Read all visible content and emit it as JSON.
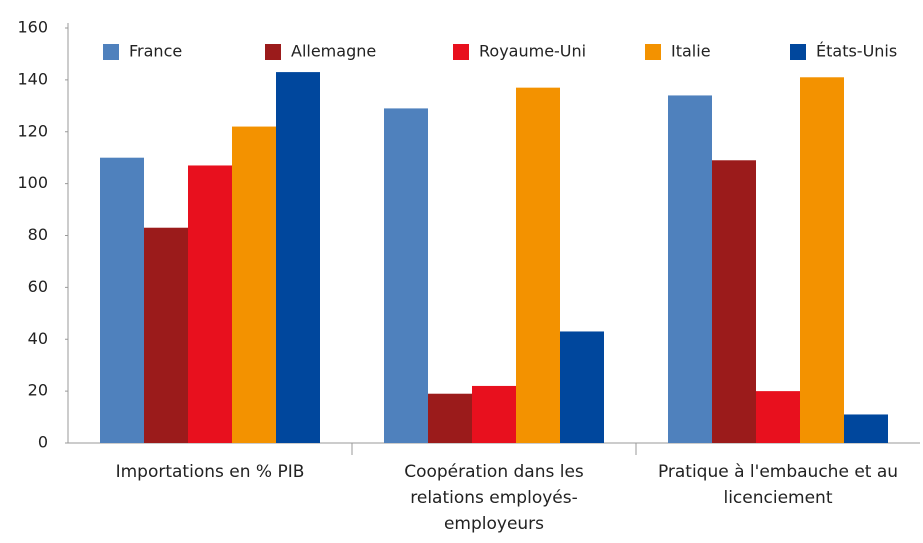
{
  "chart_data": {
    "type": "bar",
    "categories": [
      "Importations en % PIB",
      "Coopération dans les relations employés-employeurs",
      "Pratique à l'embauche et au licenciement"
    ],
    "series": [
      {
        "name": "France",
        "color": "#4f81bd",
        "values": [
          110,
          129,
          134
        ]
      },
      {
        "name": "Allemagne",
        "color": "#9b1b1b",
        "values": [
          83,
          19,
          109
        ]
      },
      {
        "name": "Royaume-Uni",
        "color": "#e8101e",
        "values": [
          107,
          22,
          20
        ]
      },
      {
        "name": "Italie",
        "color": "#f39200",
        "values": [
          122,
          137,
          141
        ]
      },
      {
        "name": "États-Unis",
        "color": "#00479d",
        "values": [
          143,
          43,
          11
        ]
      }
    ],
    "ylim": [
      0,
      160
    ],
    "yticks": [
      0,
      20,
      40,
      60,
      80,
      100,
      120,
      140,
      160
    ],
    "grid": false,
    "legend": "top"
  }
}
